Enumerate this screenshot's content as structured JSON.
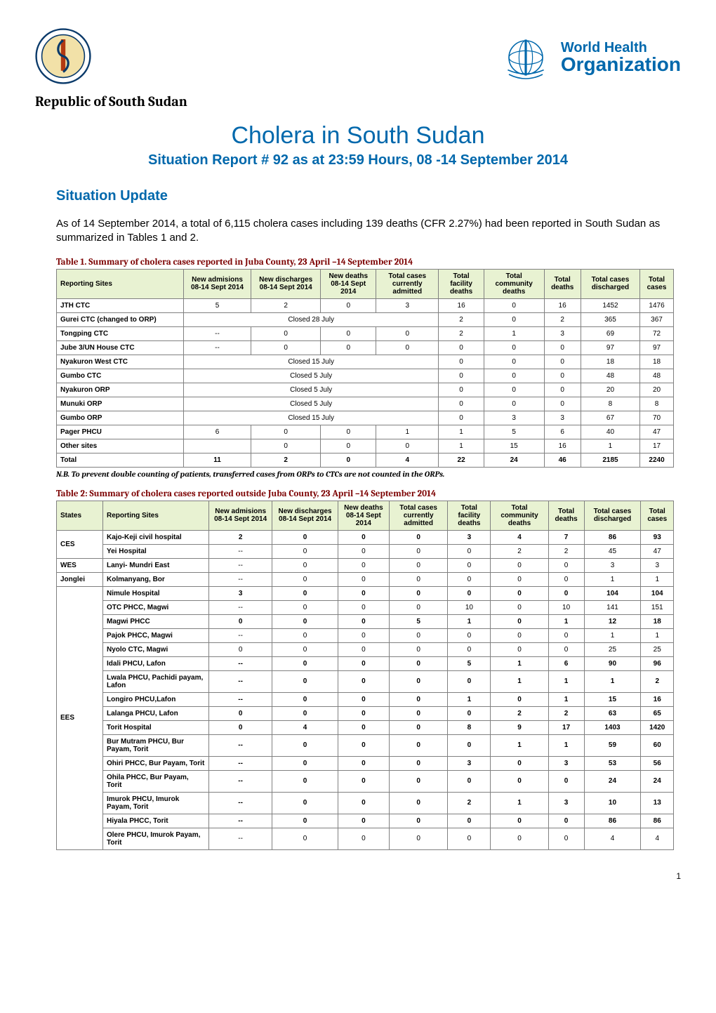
{
  "colors": {
    "brand_blue": "#0068ac",
    "caption_red": "#7c0000",
    "table_header_bg": "#e8f2d2",
    "table_border": "#808080",
    "page_bg": "#ffffff",
    "text": "#000000"
  },
  "logos": {
    "moh_alt": "Ministry of Health emblem",
    "who_alt": "World Health Organization emblem",
    "who_text_line1": "World Health",
    "who_text_line2": "Organization"
  },
  "header": {
    "country_line": "Republic of South Sudan",
    "title": "Cholera in South Sudan",
    "subtitle": "Situation Report # 92 as at 23:59 Hours, 08 -14 September 2014"
  },
  "situation": {
    "heading": "Situation Update",
    "paragraph": "As of 14 September 2014, a total of 6,115 cholera cases including 139 deaths (CFR 2.27%) had been reported in South Sudan as summarized in Tables 1 and 2."
  },
  "table1": {
    "caption": "Table 1. Summary of cholera cases reported in Juba County, 23 April –14 September 2014",
    "columns": [
      "Reporting Sites",
      "New admisions 08-14 Sept 2014",
      "New discharges 08-14 Sept 2014",
      "New deaths 08-14 Sept 2014",
      "Total cases currently admitted",
      "Total facility deaths",
      "Total community deaths",
      "Total deaths",
      "Total cases discharged",
      "Total cases"
    ],
    "rows": [
      {
        "site": "JTH CTC",
        "adm": "5",
        "dis": "2",
        "nd": "0",
        "cur": "3",
        "tfd": "16",
        "tcd": "0",
        "td": "16",
        "tcdis": "1452",
        "tc": "1476",
        "closed": null,
        "bold": false
      },
      {
        "site": "Gurei CTC (changed to ORP)",
        "closed": "Closed 28 July",
        "tfd": "2",
        "tcd": "0",
        "td": "2",
        "tcdis": "365",
        "tc": "367",
        "bold": false
      },
      {
        "site": "Tongping CTC",
        "adm": "--",
        "dis": "0",
        "nd": "0",
        "cur": "0",
        "tfd": "2",
        "tcd": "1",
        "td": "3",
        "tcdis": "69",
        "tc": "72",
        "closed": null,
        "bold": false
      },
      {
        "site": "Jube 3/UN House CTC",
        "adm": "--",
        "dis": "0",
        "nd": "0",
        "cur": "0",
        "tfd": "0",
        "tcd": "0",
        "td": "0",
        "tcdis": "97",
        "tc": "97",
        "closed": null,
        "bold": false
      },
      {
        "site": "Nyakuron West CTC",
        "closed": "Closed 15 July",
        "tfd": "0",
        "tcd": "0",
        "td": "0",
        "tcdis": "18",
        "tc": "18",
        "bold": false
      },
      {
        "site": "Gumbo CTC",
        "closed": "Closed 5 July",
        "tfd": "0",
        "tcd": "0",
        "td": "0",
        "tcdis": "48",
        "tc": "48",
        "bold": false
      },
      {
        "site": "Nyakuron ORP",
        "closed": "Closed 5 July",
        "tfd": "0",
        "tcd": "0",
        "td": "0",
        "tcdis": "20",
        "tc": "20",
        "bold": false
      },
      {
        "site": "Munuki ORP",
        "closed": "Closed 5 July",
        "tfd": "0",
        "tcd": "0",
        "td": "0",
        "tcdis": "8",
        "tc": "8",
        "bold": false
      },
      {
        "site": "Gumbo ORP",
        "closed": "Closed 15 July",
        "tfd": "0",
        "tcd": "3",
        "td": "3",
        "tcdis": "67",
        "tc": "70",
        "bold": false
      },
      {
        "site": "Pager PHCU",
        "adm": "6",
        "dis": "0",
        "nd": "0",
        "cur": "1",
        "tfd": "1",
        "tcd": "5",
        "td": "6",
        "tcdis": "40",
        "tc": "47",
        "closed": null,
        "bold": false
      },
      {
        "site": "Other sites",
        "adm": "",
        "dis": "0",
        "nd": "0",
        "cur": "0",
        "tfd": "1",
        "tcd": "15",
        "td": "16",
        "tcdis": "1",
        "tc": "17",
        "closed": null,
        "bold": false
      },
      {
        "site": "Total",
        "adm": "11",
        "dis": "2",
        "nd": "0",
        "cur": "4",
        "tfd": "22",
        "tcd": "24",
        "td": "46",
        "tcdis": "2185",
        "tc": "2240",
        "closed": null,
        "bold": true
      }
    ],
    "note": "N.B.  To prevent double counting of patients, transferred cases from ORPs to CTCs are not counted in the ORPs."
  },
  "table2": {
    "caption": "Table 2: Summary of cholera cases reported outside Juba County, 23 April –14 September 2014",
    "columns": [
      "States",
      "Reporting Sites",
      "New admisions 08-14 Sept 2014",
      "New discharges 08-14 Sept 2014",
      "New deaths 08-14 Sept 2014",
      "Total cases currently admitted",
      "Total facility deaths",
      "Total community deaths",
      "Total deaths",
      "Total cases discharged",
      "Total cases"
    ],
    "groups": [
      {
        "state": "CES",
        "rows": [
          {
            "site": "Kajo-Keji civil hospital",
            "adm": "2",
            "dis": "0",
            "nd": "0",
            "cur": "0",
            "tfd": "3",
            "tcd": "4",
            "td": "7",
            "tcdis": "86",
            "tc": "93",
            "bold": true
          },
          {
            "site": "Yei Hospital",
            "adm": "--",
            "dis": "0",
            "nd": "0",
            "cur": "0",
            "tfd": "0",
            "tcd": "2",
            "td": "2",
            "tcdis": "45",
            "tc": "47",
            "bold": false
          }
        ]
      },
      {
        "state": "WES",
        "rows": [
          {
            "site": "Lanyi- Mundri East",
            "adm": "--",
            "dis": "0",
            "nd": "0",
            "cur": "0",
            "tfd": "0",
            "tcd": "0",
            "td": "0",
            "tcdis": "3",
            "tc": "3",
            "bold": false
          }
        ]
      },
      {
        "state": "Jonglei",
        "rows": [
          {
            "site": "Kolmanyang, Bor",
            "adm": "--",
            "dis": "0",
            "nd": "0",
            "cur": "0",
            "tfd": "0",
            "tcd": "0",
            "td": "0",
            "tcdis": "1",
            "tc": "1",
            "bold": false
          }
        ]
      },
      {
        "state": "EES",
        "rows": [
          {
            "site": "Nimule Hospital",
            "adm": "3",
            "dis": "0",
            "nd": "0",
            "cur": "0",
            "tfd": "0",
            "tcd": "0",
            "td": "0",
            "tcdis": "104",
            "tc": "104",
            "bold": true
          },
          {
            "site": "OTC PHCC, Magwi",
            "adm": "--",
            "dis": "0",
            "nd": "0",
            "cur": "0",
            "tfd": "10",
            "tcd": "0",
            "td": "10",
            "tcdis": "141",
            "tc": "151",
            "bold": false
          },
          {
            "site": "Magwi PHCC",
            "adm": "0",
            "dis": "0",
            "nd": "0",
            "cur": "5",
            "tfd": "1",
            "tcd": "0",
            "td": "1",
            "tcdis": "12",
            "tc": "18",
            "bold": true
          },
          {
            "site": "Pajok PHCC, Magwi",
            "adm": "--",
            "dis": "0",
            "nd": "0",
            "cur": "0",
            "tfd": "0",
            "tcd": "0",
            "td": "0",
            "tcdis": "1",
            "tc": "1",
            "bold": false
          },
          {
            "site": "Nyolo CTC, Magwi",
            "adm": "0",
            "dis": "0",
            "nd": "0",
            "cur": "0",
            "tfd": "0",
            "tcd": "0",
            "td": "0",
            "tcdis": "25",
            "tc": "25",
            "bold": false
          },
          {
            "site": "Idali PHCU, Lafon",
            "adm": "--",
            "dis": "0",
            "nd": "0",
            "cur": "0",
            "tfd": "5",
            "tcd": "1",
            "td": "6",
            "tcdis": "90",
            "tc": "96",
            "bold": true
          },
          {
            "site": "Lwala PHCU, Pachidi payam, Lafon",
            "adm": "--",
            "dis": "0",
            "nd": "0",
            "cur": "0",
            "tfd": "0",
            "tcd": "1",
            "td": "1",
            "tcdis": "1",
            "tc": "2",
            "bold": true
          },
          {
            "site": "Longiro PHCU,Lafon",
            "adm": "--",
            "dis": "0",
            "nd": "0",
            "cur": "0",
            "tfd": "1",
            "tcd": "0",
            "td": "1",
            "tcdis": "15",
            "tc": "16",
            "bold": true
          },
          {
            "site": "Lalanga PHCU, Lafon",
            "adm": "0",
            "dis": "0",
            "nd": "0",
            "cur": "0",
            "tfd": "0",
            "tcd": "2",
            "td": "2",
            "tcdis": "63",
            "tc": "65",
            "bold": true
          },
          {
            "site": "Torit  Hospital",
            "adm": "0",
            "dis": "4",
            "nd": "0",
            "cur": "0",
            "tfd": "8",
            "tcd": "9",
            "td": "17",
            "tcdis": "1403",
            "tc": "1420",
            "bold": true
          },
          {
            "site": "Bur Mutram PHCU, Bur Payam, Torit",
            "adm": "--",
            "dis": "0",
            "nd": "0",
            "cur": "0",
            "tfd": "0",
            "tcd": "1",
            "td": "1",
            "tcdis": "59",
            "tc": "60",
            "bold": true
          },
          {
            "site": "Ohiri PHCC, Bur Payam, Torit",
            "adm": "--",
            "dis": "0",
            "nd": "0",
            "cur": "0",
            "tfd": "3",
            "tcd": "0",
            "td": "3",
            "tcdis": "53",
            "tc": "56",
            "bold": true
          },
          {
            "site": "Ohila PHCC, Bur Payam, Torit",
            "adm": "--",
            "dis": "0",
            "nd": "0",
            "cur": "0",
            "tfd": "0",
            "tcd": "0",
            "td": "0",
            "tcdis": "24",
            "tc": "24",
            "bold": true
          },
          {
            "site": "Imurok PHCU, Imurok Payam, Torit",
            "adm": "--",
            "dis": "0",
            "nd": "0",
            "cur": "0",
            "tfd": "2",
            "tcd": "1",
            "td": "3",
            "tcdis": "10",
            "tc": "13",
            "bold": true
          },
          {
            "site": "Hiyala PHCC, Torit",
            "adm": "--",
            "dis": "0",
            "nd": "0",
            "cur": "0",
            "tfd": "0",
            "tcd": "0",
            "td": "0",
            "tcdis": "86",
            "tc": "86",
            "bold": true
          },
          {
            "site": "Olere PHCU, Imurok Payam, Torit",
            "adm": "--",
            "dis": "0",
            "nd": "0",
            "cur": "0",
            "tfd": "0",
            "tcd": "0",
            "td": "0",
            "tcdis": "4",
            "tc": "4",
            "bold": false
          }
        ]
      }
    ]
  },
  "page_number": "1"
}
